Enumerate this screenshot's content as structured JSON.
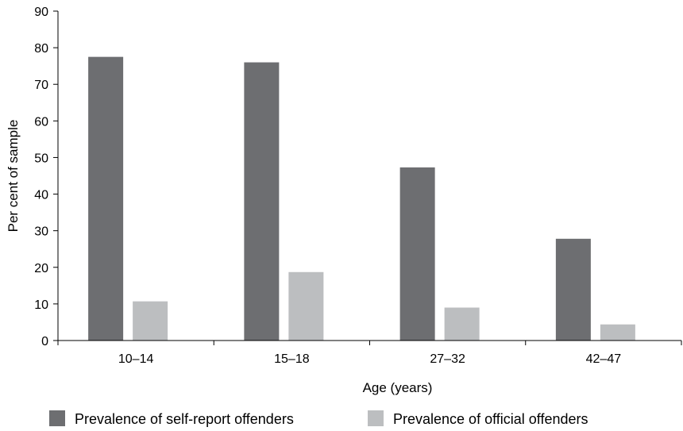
{
  "chart_data": {
    "type": "bar",
    "categories": [
      "10–14",
      "15–18",
      "27–32",
      "42–47"
    ],
    "series": [
      {
        "name": "Prevalence of self-report offenders",
        "color": "#6d6e71",
        "values": [
          77.5,
          76,
          47.3,
          27.8
        ]
      },
      {
        "name": "Prevalence of official offenders",
        "color": "#bcbec0",
        "values": [
          10.7,
          18.7,
          9,
          4.4
        ]
      }
    ],
    "title": "",
    "xlabel": "Age (years)",
    "ylabel": "Per cent of sample",
    "ylim": [
      0,
      90
    ],
    "yticks": [
      0,
      10,
      20,
      30,
      40,
      50,
      60,
      70,
      80,
      90
    ],
    "grid": false,
    "legend_position": "bottom"
  }
}
